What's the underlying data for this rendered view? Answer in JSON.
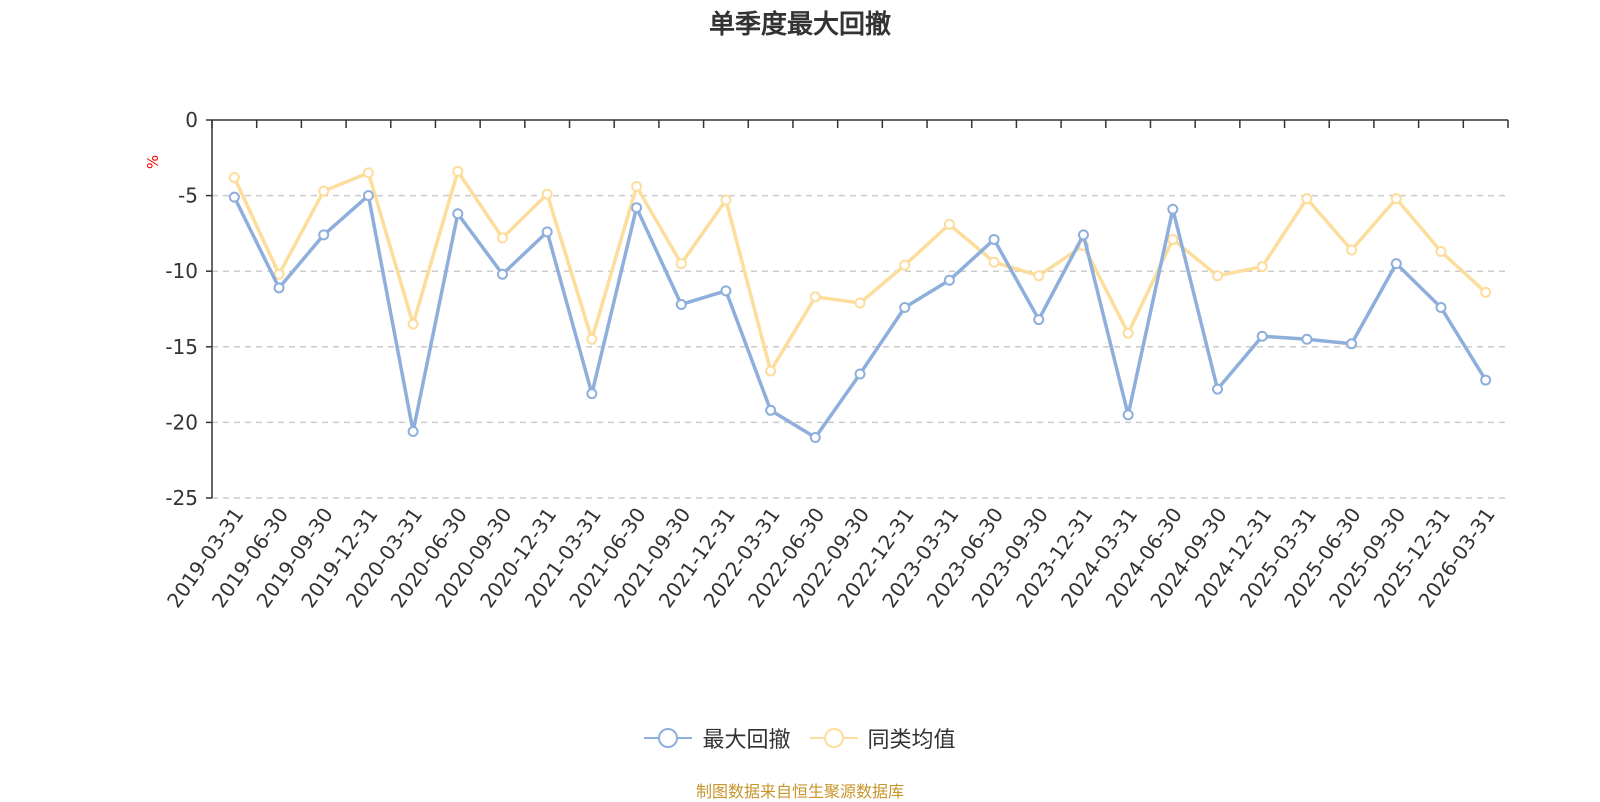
{
  "chart_data": {
    "type": "line",
    "title": "单季度最大回撤",
    "ylabel": "%",
    "xlabel": "",
    "ylim": [
      -25,
      0
    ],
    "yticks": [
      0,
      -5,
      -10,
      -15,
      -20,
      -25
    ],
    "categories": [
      "2019-03-31",
      "2019-06-30",
      "2019-09-30",
      "2019-12-31",
      "2020-03-31",
      "2020-06-30",
      "2020-09-30",
      "2020-12-31",
      "2021-03-31",
      "2021-06-30",
      "2021-09-30",
      "2021-12-31",
      "2022-03-31",
      "2022-06-30",
      "2022-09-30",
      "2022-12-31",
      "2023-03-31",
      "2023-06-30",
      "2023-09-30",
      "2023-12-31",
      "2024-03-31",
      "2024-06-30",
      "2024-09-30",
      "2024-12-31",
      "2025-03-31",
      "2025-06-30",
      "2025-09-30",
      "2025-12-31",
      "2026-03-31"
    ],
    "series": [
      {
        "name": "最大回撤",
        "color": "#8eaedc",
        "values": [
          -5.1,
          -11.1,
          -7.6,
          -5.0,
          -20.6,
          -6.2,
          -10.2,
          -7.4,
          -18.1,
          -5.8,
          -12.2,
          -11.3,
          -19.2,
          -21.0,
          -16.8,
          -12.4,
          -10.6,
          -7.9,
          -13.2,
          -7.6,
          -19.5,
          -5.9,
          -17.8,
          -14.3,
          -14.5,
          -14.8,
          -9.5,
          -12.4,
          -17.2
        ]
      },
      {
        "name": "同类均值",
        "color": "#fddd9c",
        "values": [
          -3.8,
          -10.2,
          -4.7,
          -3.5,
          -13.5,
          -3.4,
          -7.8,
          -4.9,
          -14.5,
          -4.4,
          -9.5,
          -5.3,
          -16.6,
          -11.7,
          -12.1,
          -9.6,
          -6.9,
          -9.4,
          -10.3,
          -8.3,
          -14.1,
          -7.9,
          -10.3,
          -9.7,
          -5.2,
          -8.6,
          -5.2,
          -8.7,
          -11.4
        ]
      }
    ],
    "legend_position": "bottom-center",
    "grid": true
  },
  "source_text": "制图数据来自恒生聚源数据库"
}
